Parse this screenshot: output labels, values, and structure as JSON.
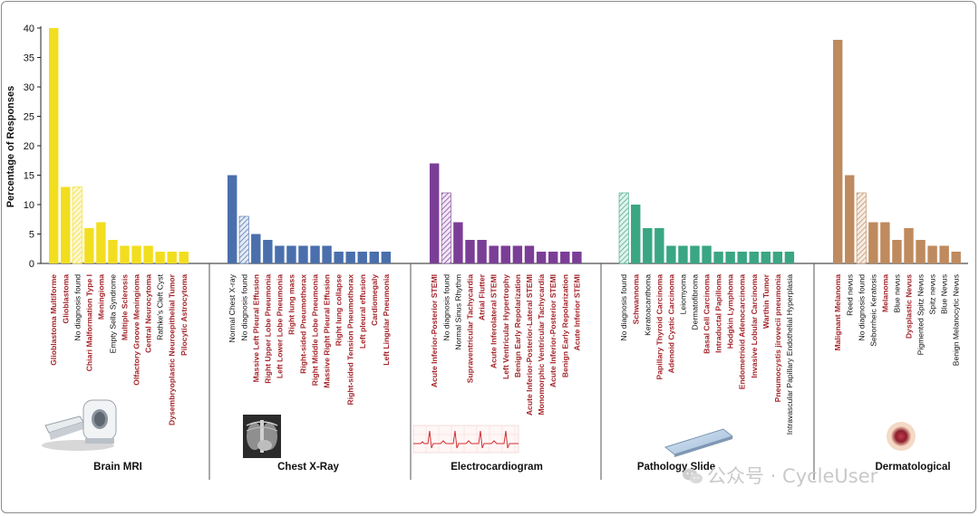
{
  "chart_data": {
    "type": "bar",
    "ylabel": "Percentage of Responses",
    "ylim": [
      0,
      40
    ],
    "yticks": [
      0,
      5,
      10,
      15,
      20,
      25,
      30,
      35,
      40
    ],
    "grid": false,
    "legend": "none",
    "colors": {
      "Brain MRI": "#f2de1f",
      "Chest X-Ray": "#4a6fac",
      "Electrocardiogram": "#7b3e97",
      "Pathology Slide": "#3aa683",
      "Dermatological": "#be8a5e",
      "label_red": "#a4262c",
      "label_black": "#111111"
    },
    "groups": [
      {
        "name": "Brain MRI",
        "bars": [
          {
            "label": "Glioblastoma Multiforme",
            "value": 40,
            "red": true
          },
          {
            "label": "Glioblastoma",
            "value": 13,
            "red": true
          },
          {
            "label": "No diagnosis found",
            "value": 13,
            "red": false,
            "hatched": true
          },
          {
            "label": "Chiari Malformation Type I",
            "value": 6,
            "red": true
          },
          {
            "label": "Meningioma",
            "value": 7,
            "red": true
          },
          {
            "label": "Empty Sella Syndrome",
            "value": 4,
            "red": false
          },
          {
            "label": "Multiple Sclerosis",
            "value": 3,
            "red": true
          },
          {
            "label": "Olfactory Groove Meningioma",
            "value": 3,
            "red": true
          },
          {
            "label": "Central Neurocytoma",
            "value": 3,
            "red": true
          },
          {
            "label": "Rathke's Cleft Cyst",
            "value": 2,
            "red": false
          },
          {
            "label": "Dysembryoplastic Neuroepithelial Tumor",
            "value": 2,
            "red": true
          },
          {
            "label": "Pilocytic Astrocytoma",
            "value": 2,
            "red": true
          }
        ]
      },
      {
        "name": "Chest X-Ray",
        "bars": [
          {
            "label": "Normal Chest X-ray",
            "value": 15,
            "red": false
          },
          {
            "label": "No diagnosis found",
            "value": 8,
            "red": false,
            "hatched": true
          },
          {
            "label": "Massive Left Pleural Effusion",
            "value": 5,
            "red": true
          },
          {
            "label": "Right Upper Lobe Pneumonia",
            "value": 4,
            "red": true
          },
          {
            "label": "Left Lower Lobe Pneumonia",
            "value": 3,
            "red": true
          },
          {
            "label": "Right lung mass",
            "value": 3,
            "red": true
          },
          {
            "label": "Right-sided Pneumothorax",
            "value": 3,
            "red": true
          },
          {
            "label": "Right Middle Lobe Pneumonia",
            "value": 3,
            "red": true
          },
          {
            "label": "Massive Right Pleural Effusion",
            "value": 3,
            "red": true
          },
          {
            "label": "Right lung collapse",
            "value": 2,
            "red": true
          },
          {
            "label": "Right-sided Tension Pneumothorax",
            "value": 2,
            "red": true
          },
          {
            "label": "Left pleural effusion",
            "value": 2,
            "red": true
          },
          {
            "label": "Cardiomegaly",
            "value": 2,
            "red": true
          },
          {
            "label": "Left Lingular Pneumonia",
            "value": 2,
            "red": true
          }
        ]
      },
      {
        "name": "Electrocardiogram",
        "bars": [
          {
            "label": "Acute Inferior-Posterior STEMI",
            "value": 17,
            "red": true
          },
          {
            "label": "No diagnosis found",
            "value": 12,
            "red": false,
            "hatched": true
          },
          {
            "label": "Normal Sinus Rhythm",
            "value": 7,
            "red": false
          },
          {
            "label": "Supraventricular Tachycardia",
            "value": 4,
            "red": true
          },
          {
            "label": "Atrial Flutter",
            "value": 4,
            "red": true
          },
          {
            "label": "Acute Inferolateral STEMI",
            "value": 3,
            "red": true
          },
          {
            "label": "Left Ventricular Hypertrophy",
            "value": 3,
            "red": true
          },
          {
            "label": "Benign Early Repolarization",
            "value": 3,
            "red": true
          },
          {
            "label": "Acute Inferior-Posterior-Lateral STEMI",
            "value": 3,
            "red": true
          },
          {
            "label": "Monomorphic Ventricular Tachycardia",
            "value": 2,
            "red": true
          },
          {
            "label": "Acute Inferior-Posterior STEMI",
            "value": 2,
            "red": true
          },
          {
            "label": "Benign Early Repolarization",
            "value": 2,
            "red": true
          },
          {
            "label": "Acute Inferior STEMI",
            "value": 2,
            "red": true
          }
        ]
      },
      {
        "name": "Pathology Slide",
        "bars": [
          {
            "label": "No diagnosis found",
            "value": 12,
            "red": false,
            "hatched": true
          },
          {
            "label": "Schwannoma",
            "value": 10,
            "red": true
          },
          {
            "label": "Keratoacanthoma",
            "value": 6,
            "red": false
          },
          {
            "label": "Papillary Thyroid Carcinoma",
            "value": 6,
            "red": true
          },
          {
            "label": "Adenoid Cystic Carcinoma",
            "value": 3,
            "red": true
          },
          {
            "label": "Leiomyoma",
            "value": 3,
            "red": false
          },
          {
            "label": "Dermatofibroma",
            "value": 3,
            "red": false
          },
          {
            "label": "Basal Cell Carcinoma",
            "value": 3,
            "red": true
          },
          {
            "label": "Intraductal Papilloma",
            "value": 2,
            "red": true
          },
          {
            "label": "Hodgkin Lymphoma",
            "value": 2,
            "red": true
          },
          {
            "label": "Endometrioid Adenocarcinoma",
            "value": 2,
            "red": true
          },
          {
            "label": "Invasive Lobular Carcinoma",
            "value": 2,
            "red": true
          },
          {
            "label": "Warthin Tumor",
            "value": 2,
            "red": true
          },
          {
            "label": "Pneumocystis jirovecii pneumonia",
            "value": 2,
            "red": true
          },
          {
            "label": "Intravascular Papillary Endothelial Hyperplasia",
            "value": 2,
            "red": false
          }
        ]
      },
      {
        "name": "Dermatological",
        "bars": [
          {
            "label": "Malignant Melanoma",
            "value": 38,
            "red": true
          },
          {
            "label": "Reed nevus",
            "value": 15,
            "red": false
          },
          {
            "label": "No diagnosis found",
            "value": 12,
            "red": false,
            "hatched": true
          },
          {
            "label": "Seborrheic Keratosis",
            "value": 7,
            "red": false
          },
          {
            "label": "Melanoma",
            "value": 7,
            "red": true
          },
          {
            "label": "Blue nevus",
            "value": 4,
            "red": false
          },
          {
            "label": "Dysplastic Nevus",
            "value": 6,
            "red": true
          },
          {
            "label": "Pigmented Spitz Nevus",
            "value": 4,
            "red": false
          },
          {
            "label": "Spitz nevus",
            "value": 3,
            "red": false
          },
          {
            "label": "Blue Nevus",
            "value": 3,
            "red": false
          },
          {
            "label": "Benign Melanocytic Nevus",
            "value": 2,
            "red": false
          }
        ]
      }
    ]
  },
  "watermark": {
    "text": "公众号 · CycleUser",
    "icon": "wechat-icon"
  }
}
